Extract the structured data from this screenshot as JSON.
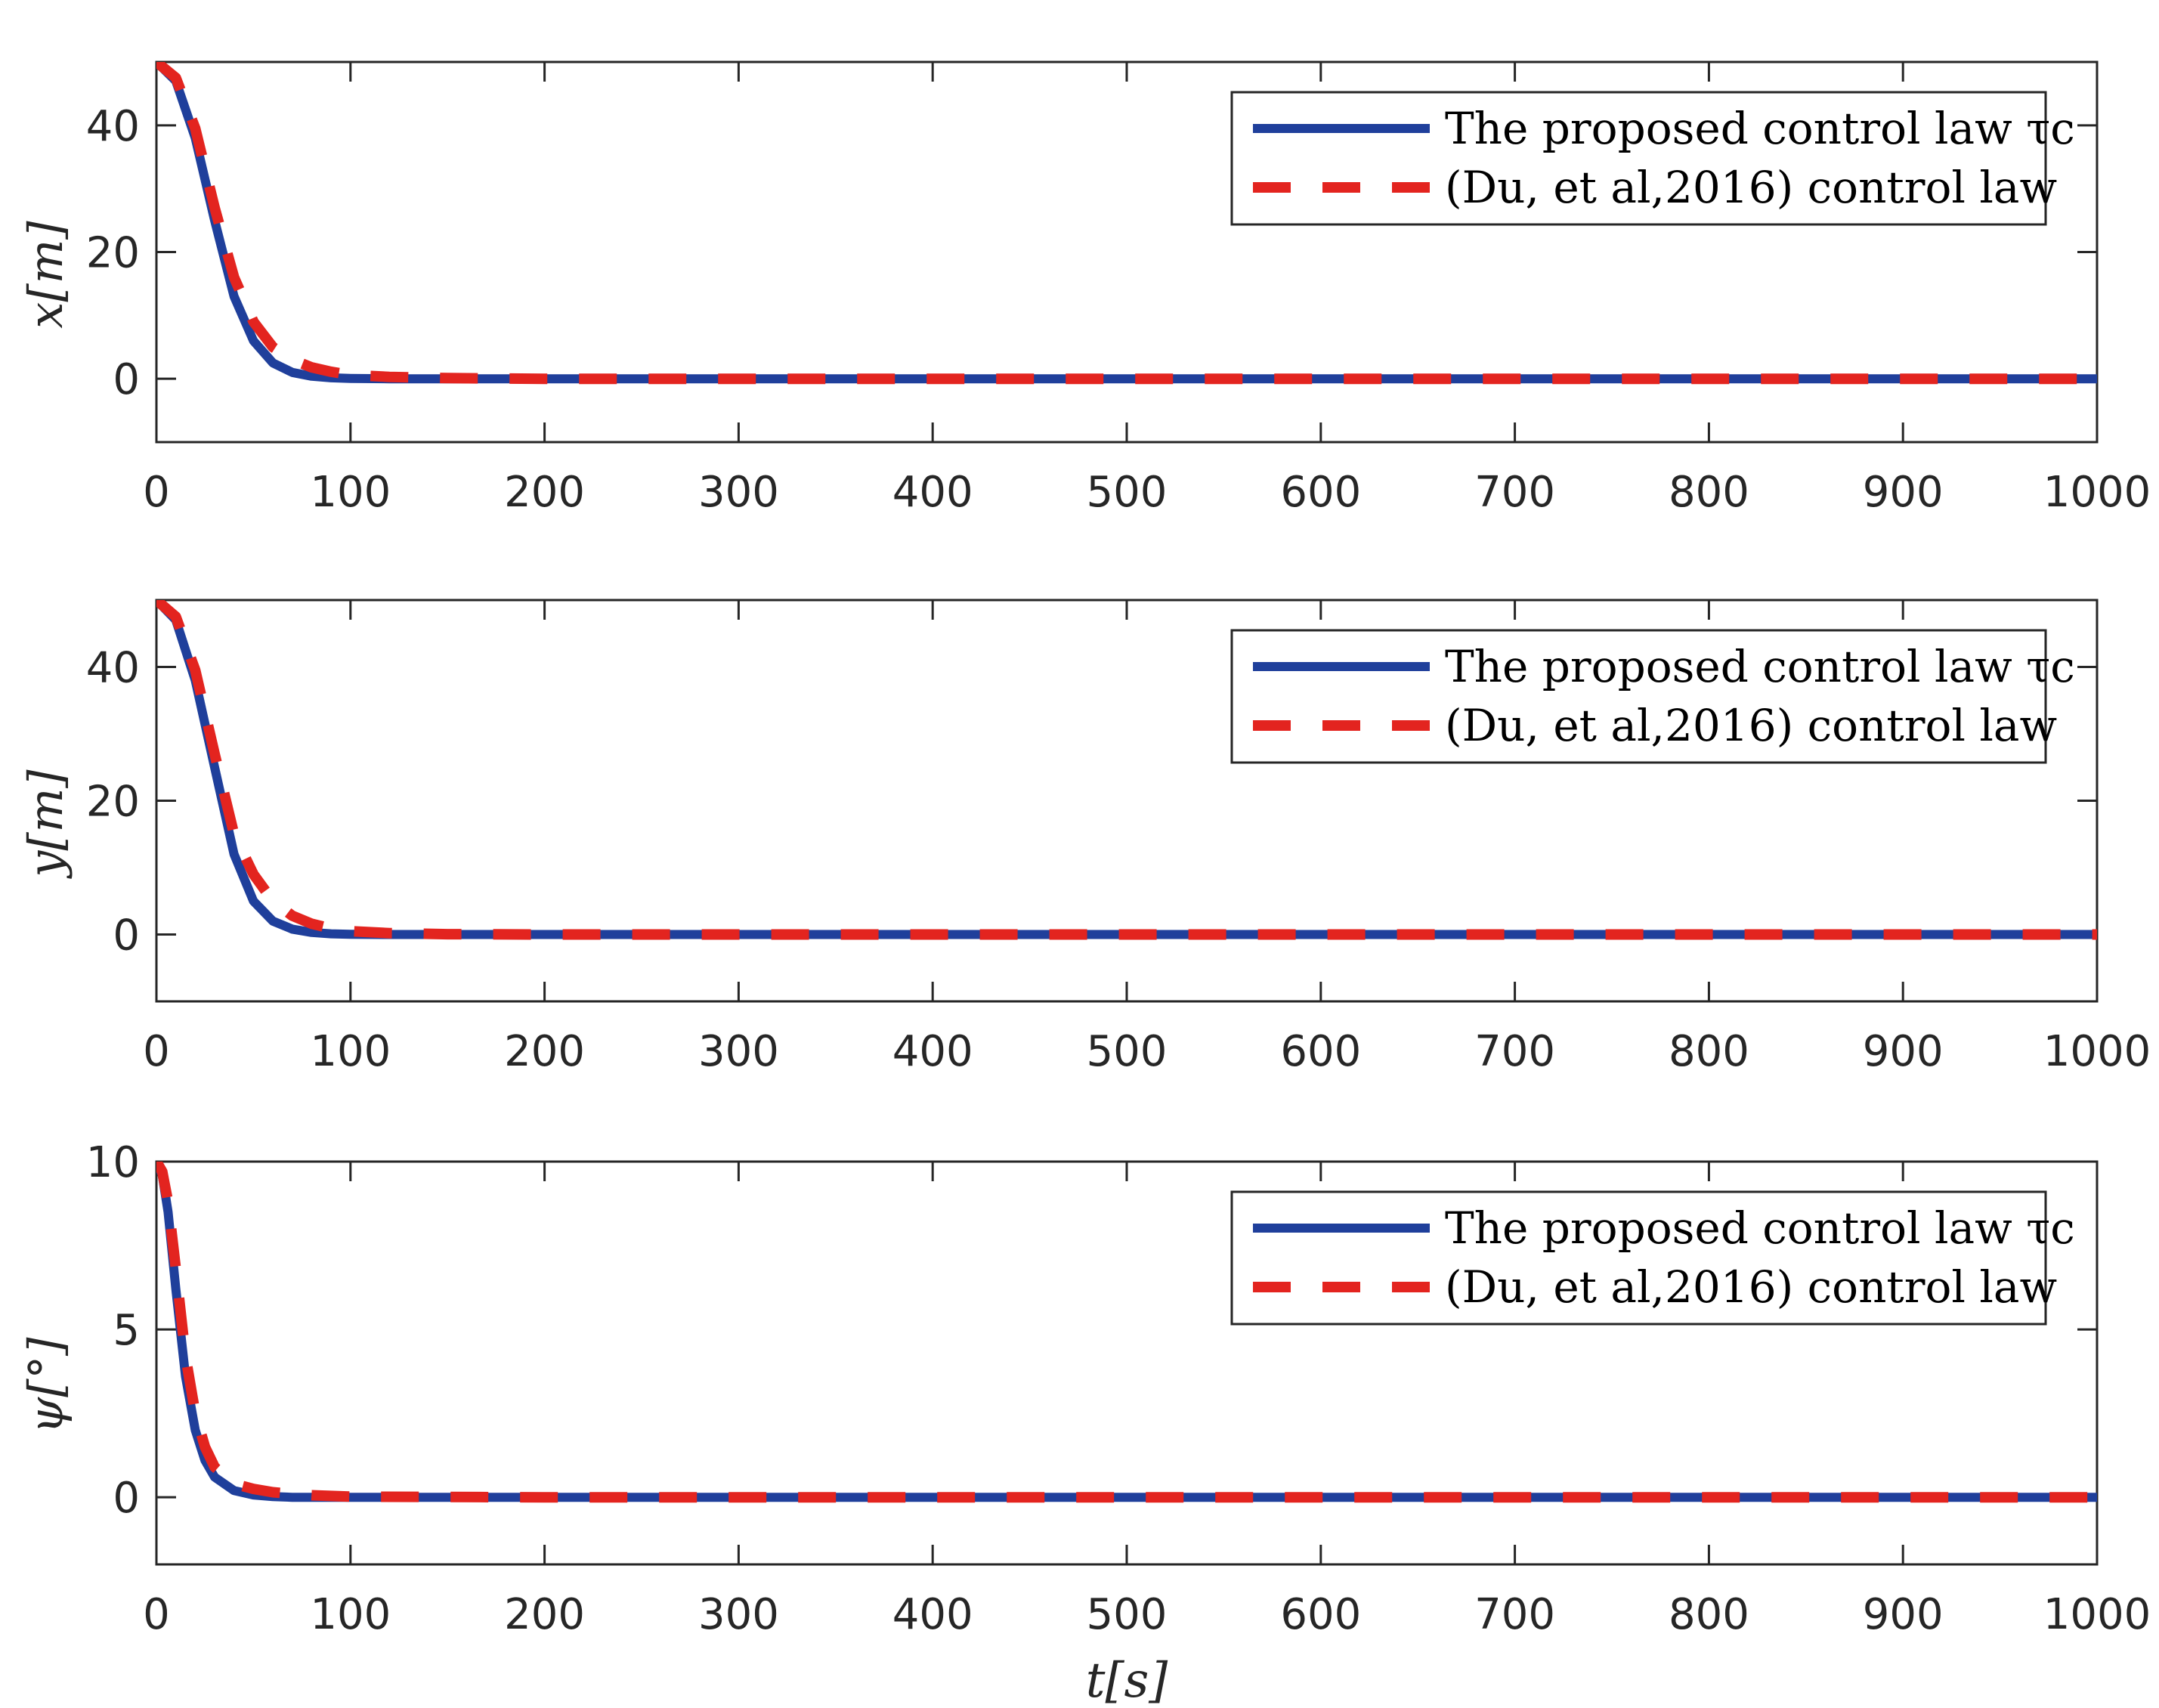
{
  "chart_data": [
    {
      "type": "line",
      "ylabel": "x[m]",
      "xlabel": "",
      "xlim": [
        0,
        1000
      ],
      "ylim": [
        -10,
        50
      ],
      "xticks": [
        "0",
        "100",
        "200",
        "300",
        "400",
        "500",
        "600",
        "700",
        "800",
        "900",
        "1000"
      ],
      "yticks": [
        "0",
        "20",
        "40"
      ],
      "ytick_values": [
        0,
        20,
        40
      ],
      "legend": [
        "The proposed control law τc",
        "(Du, et al,2016) control law"
      ],
      "legend_position": "top-right",
      "series": [
        {
          "name": "The proposed control law τc",
          "color": "#1f3f9b",
          "style": "solid",
          "x": [
            0,
            10,
            20,
            30,
            40,
            50,
            60,
            70,
            80,
            90,
            100,
            120,
            150,
            200,
            300,
            500,
            700,
            1000
          ],
          "values": [
            50,
            47,
            38,
            25,
            13,
            6,
            2.5,
            1,
            0.4,
            0.15,
            0.05,
            0,
            0,
            0,
            0,
            0,
            0,
            0
          ]
        },
        {
          "name": "(Du, et al,2016) control law",
          "color": "#e3241f",
          "style": "dashed",
          "x": [
            0,
            10,
            20,
            30,
            40,
            50,
            60,
            70,
            80,
            90,
            100,
            120,
            150,
            200,
            300,
            500,
            700,
            1000
          ],
          "values": [
            50,
            47.5,
            39.5,
            27,
            16,
            9,
            5,
            3,
            1.8,
            1.1,
            0.6,
            0.3,
            0.1,
            0,
            0,
            0,
            0,
            0
          ]
        }
      ]
    },
    {
      "type": "line",
      "ylabel": "y[m]",
      "xlabel": "",
      "xlim": [
        0,
        1000
      ],
      "ylim": [
        -10,
        50
      ],
      "xticks": [
        "0",
        "100",
        "200",
        "300",
        "400",
        "500",
        "600",
        "700",
        "800",
        "900",
        "1000"
      ],
      "yticks": [
        "0",
        "20",
        "40"
      ],
      "ytick_values": [
        0,
        20,
        40
      ],
      "legend": [
        "The proposed control law τc",
        "(Du, et al,2016) control law"
      ],
      "legend_position": "top-right",
      "series": [
        {
          "name": "The proposed control law τc",
          "color": "#1f3f9b",
          "style": "solid",
          "x": [
            0,
            10,
            20,
            30,
            40,
            50,
            60,
            70,
            80,
            90,
            100,
            120,
            150,
            200,
            300,
            500,
            700,
            1000
          ],
          "values": [
            50,
            47,
            38,
            25,
            12,
            5,
            2,
            0.8,
            0.3,
            0.1,
            0.03,
            0,
            0,
            0,
            0,
            0,
            0,
            0
          ]
        },
        {
          "name": "(Du, et al,2016) control law",
          "color": "#e3241f",
          "style": "dashed",
          "x": [
            0,
            10,
            20,
            30,
            40,
            50,
            60,
            70,
            80,
            90,
            100,
            120,
            150,
            200,
            300,
            500,
            700,
            1000
          ],
          "values": [
            50,
            47.5,
            39.5,
            27,
            15,
            9,
            5,
            2.8,
            1.6,
            0.9,
            0.5,
            0.2,
            0.05,
            0,
            0,
            0,
            0,
            0
          ]
        }
      ]
    },
    {
      "type": "line",
      "ylabel": "ψ[°]",
      "xlabel": "t[s]",
      "xlim": [
        0,
        1000
      ],
      "ylim": [
        -2,
        10
      ],
      "xticks": [
        "0",
        "100",
        "200",
        "300",
        "400",
        "500",
        "600",
        "700",
        "800",
        "900",
        "1000"
      ],
      "yticks": [
        "0",
        "5",
        "10"
      ],
      "ytick_values": [
        0,
        5,
        10
      ],
      "legend": [
        "The proposed control law τc",
        "(Du, et al,2016) control law"
      ],
      "legend_position": "top-right",
      "series": [
        {
          "name": "The proposed control law τc",
          "color": "#1f3f9b",
          "style": "solid",
          "x": [
            0,
            3,
            6,
            10,
            15,
            20,
            25,
            30,
            40,
            50,
            60,
            70,
            80,
            100,
            200,
            500,
            1000
          ],
          "values": [
            10,
            9.6,
            8.5,
            6.2,
            3.6,
            2.0,
            1.1,
            0.6,
            0.2,
            0.07,
            0.02,
            0,
            0,
            0,
            0,
            0,
            0
          ]
        },
        {
          "name": "(Du, et al,2016) control law",
          "color": "#e3241f",
          "style": "dashed",
          "x": [
            0,
            3,
            6,
            10,
            15,
            20,
            25,
            30,
            40,
            50,
            60,
            70,
            80,
            100,
            200,
            500,
            1000
          ],
          "values": [
            10,
            9.7,
            8.8,
            6.8,
            4.2,
            2.5,
            1.5,
            0.9,
            0.4,
            0.25,
            0.15,
            0.1,
            0.06,
            0.02,
            0,
            0,
            0
          ]
        }
      ]
    }
  ]
}
